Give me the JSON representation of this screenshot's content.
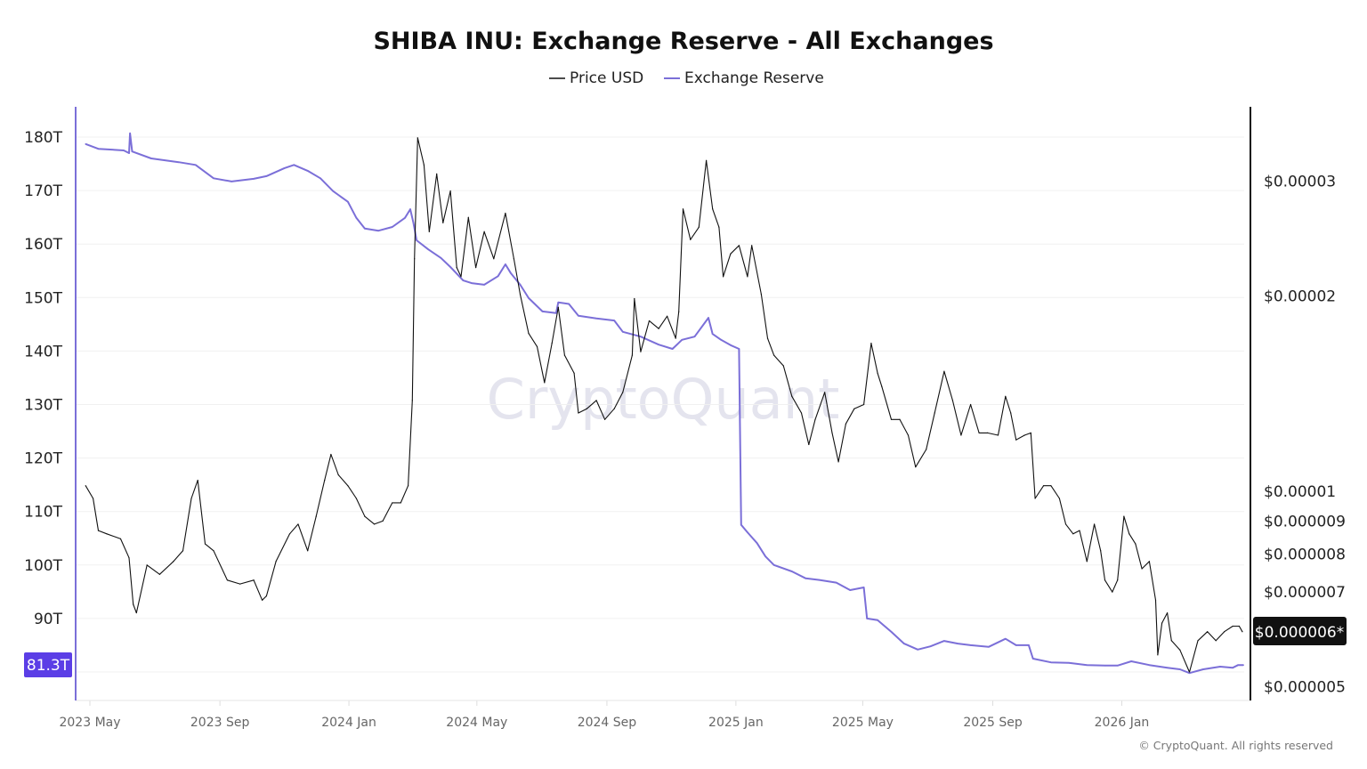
{
  "chart_data": {
    "type": "line",
    "title": "SHIBA INU: Exchange Reserve - All Exchanges",
    "watermark": "CryptoQuant",
    "footer": "© CryptoQuant. All rights reserved",
    "grid": true,
    "legend_position": "top-center",
    "legend": [
      "Price USD",
      "Exchange Reserve"
    ],
    "colors": {
      "price": "#111111",
      "reserve": "#7b6fd8",
      "reserve_label_bg": "#5b3ee6",
      "price_label_bg": "#111111"
    },
    "x_ticks": [
      "2023 May",
      "2023 Sep",
      "2024 Jan",
      "2024 May",
      "2024 Sep",
      "2025 Jan",
      "2025 May",
      "2025 Sep",
      "2026 Jan"
    ],
    "x_tick_dates": [
      "2023-05-01",
      "2023-09-01",
      "2024-01-01",
      "2024-05-01",
      "2024-09-01",
      "2025-01-01",
      "2025-05-01",
      "2025-09-01",
      "2026-01-01"
    ],
    "left_axis": {
      "ticks": [
        "180T",
        "170T",
        "160T",
        "150T",
        "140T",
        "130T",
        "120T",
        "110T",
        "100T",
        "90T"
      ],
      "tick_values": [
        180,
        170,
        160,
        150,
        140,
        130,
        120,
        110,
        100,
        90
      ],
      "unit": "T",
      "current_label": "81.3T"
    },
    "right_axis": {
      "scale": "log",
      "ticks": [
        "$0.00003",
        "$0.00002",
        "$0.00001",
        "$0.000009",
        "$0.000008",
        "$0.000007",
        "$0.000005"
      ],
      "tick_values": [
        3e-05,
        2e-05,
        1e-05,
        9e-06,
        8e-06,
        7e-06,
        5e-06
      ],
      "current_label": "$0.000006*"
    },
    "series": [
      {
        "name": "Price USD",
        "axis": "right",
        "points": [
          [
            "2023-04-27",
            1.02e-05
          ],
          [
            "2023-05-04",
            9.75e-06
          ],
          [
            "2023-05-09",
            8.7e-06
          ],
          [
            "2023-05-17",
            8.6e-06
          ],
          [
            "2023-05-30",
            8.45e-06
          ],
          [
            "2023-06-07",
            7.9e-06
          ],
          [
            "2023-06-11",
            6.7e-06
          ],
          [
            "2023-06-14",
            6.5e-06
          ],
          [
            "2023-06-24",
            7.7e-06
          ],
          [
            "2023-07-06",
            7.45e-06
          ],
          [
            "2023-07-19",
            7.8e-06
          ],
          [
            "2023-07-28",
            8.1e-06
          ],
          [
            "2023-08-05",
            9.75e-06
          ],
          [
            "2023-08-11",
            1.04e-05
          ],
          [
            "2023-08-18",
            8.3e-06
          ],
          [
            "2023-08-26",
            8.1e-06
          ],
          [
            "2023-09-08",
            7.3e-06
          ],
          [
            "2023-09-20",
            7.2e-06
          ],
          [
            "2023-10-03",
            7.3e-06
          ],
          [
            "2023-10-11",
            6.8e-06
          ],
          [
            "2023-10-15",
            6.9e-06
          ],
          [
            "2023-10-24",
            7.8e-06
          ],
          [
            "2023-11-06",
            8.6e-06
          ],
          [
            "2023-11-14",
            8.9e-06
          ],
          [
            "2023-11-23",
            8.1e-06
          ],
          [
            "2023-12-01",
            9.15e-06
          ],
          [
            "2023-12-09",
            1.04e-05
          ],
          [
            "2023-12-15",
            1.14e-05
          ],
          [
            "2023-12-22",
            1.06e-05
          ],
          [
            "2023-12-31",
            1.02e-05
          ],
          [
            "2024-01-08",
            9.75e-06
          ],
          [
            "2024-01-16",
            9.15e-06
          ],
          [
            "2024-01-25",
            8.9e-06
          ],
          [
            "2024-02-02",
            9e-06
          ],
          [
            "2024-02-11",
            9.6e-06
          ],
          [
            "2024-02-19",
            9.6e-06
          ],
          [
            "2024-02-26",
            1.02e-05
          ],
          [
            "2024-03-01",
            1.38e-05
          ],
          [
            "2024-03-03",
            2.28e-05
          ],
          [
            "2024-03-06",
            3.5e-05
          ],
          [
            "2024-03-12",
            3.18e-05
          ],
          [
            "2024-03-17",
            2.51e-05
          ],
          [
            "2024-03-24",
            3.08e-05
          ],
          [
            "2024-03-30",
            2.59e-05
          ],
          [
            "2024-04-06",
            2.9e-05
          ],
          [
            "2024-04-12",
            2.21e-05
          ],
          [
            "2024-04-16",
            2.14e-05
          ],
          [
            "2024-04-23",
            2.64e-05
          ],
          [
            "2024-04-30",
            2.21e-05
          ],
          [
            "2024-05-08",
            2.51e-05
          ],
          [
            "2024-05-17",
            2.28e-05
          ],
          [
            "2024-05-28",
            2.68e-05
          ],
          [
            "2024-06-05",
            2.28e-05
          ],
          [
            "2024-06-11",
            2.01e-05
          ],
          [
            "2024-06-19",
            1.75e-05
          ],
          [
            "2024-06-27",
            1.67e-05
          ],
          [
            "2024-07-04",
            1.47e-05
          ],
          [
            "2024-07-11",
            1.69e-05
          ],
          [
            "2024-07-17",
            1.92e-05
          ],
          [
            "2024-07-23",
            1.62e-05
          ],
          [
            "2024-08-01",
            1.52e-05
          ],
          [
            "2024-08-05",
            1.32e-05
          ],
          [
            "2024-08-13",
            1.34e-05
          ],
          [
            "2024-08-22",
            1.38e-05
          ],
          [
            "2024-08-30",
            1.29e-05
          ],
          [
            "2024-09-08",
            1.34e-05
          ],
          [
            "2024-09-16",
            1.42e-05
          ],
          [
            "2024-09-25",
            1.62e-05
          ],
          [
            "2024-09-27",
            1.98e-05
          ],
          [
            "2024-10-03",
            1.64e-05
          ],
          [
            "2024-10-11",
            1.83e-05
          ],
          [
            "2024-10-20",
            1.78e-05
          ],
          [
            "2024-10-28",
            1.86e-05
          ],
          [
            "2024-11-05",
            1.72e-05
          ],
          [
            "2024-11-08",
            1.89e-05
          ],
          [
            "2024-11-12",
            2.72e-05
          ],
          [
            "2024-11-19",
            2.44e-05
          ],
          [
            "2024-11-27",
            2.55e-05
          ],
          [
            "2024-12-04",
            3.23e-05
          ],
          [
            "2024-12-10",
            2.72e-05
          ],
          [
            "2024-12-16",
            2.55e-05
          ],
          [
            "2024-12-20",
            2.14e-05
          ],
          [
            "2024-12-27",
            2.32e-05
          ],
          [
            "2025-01-04",
            2.39e-05
          ],
          [
            "2025-01-12",
            2.14e-05
          ],
          [
            "2025-01-16",
            2.39e-05
          ],
          [
            "2025-01-25",
            2.01e-05
          ],
          [
            "2025-01-31",
            1.72e-05
          ],
          [
            "2025-02-06",
            1.62e-05
          ],
          [
            "2025-02-15",
            1.56e-05
          ],
          [
            "2025-02-23",
            1.4e-05
          ],
          [
            "2025-03-04",
            1.32e-05
          ],
          [
            "2025-03-11",
            1.18e-05
          ],
          [
            "2025-03-17",
            1.29e-05
          ],
          [
            "2025-03-26",
            1.42e-05
          ],
          [
            "2025-04-02",
            1.23e-05
          ],
          [
            "2025-04-08",
            1.11e-05
          ],
          [
            "2025-04-15",
            1.27e-05
          ],
          [
            "2025-04-23",
            1.34e-05
          ],
          [
            "2025-05-02",
            1.36e-05
          ],
          [
            "2025-05-09",
            1.69e-05
          ],
          [
            "2025-05-15",
            1.52e-05
          ],
          [
            "2025-05-19",
            1.45e-05
          ],
          [
            "2025-05-28",
            1.29e-05
          ],
          [
            "2025-06-05",
            1.29e-05
          ],
          [
            "2025-06-13",
            1.22e-05
          ],
          [
            "2025-06-20",
            1.09e-05
          ],
          [
            "2025-06-30",
            1.16e-05
          ],
          [
            "2025-07-08",
            1.32e-05
          ],
          [
            "2025-07-17",
            1.53e-05
          ],
          [
            "2025-07-25",
            1.38e-05
          ],
          [
            "2025-08-02",
            1.22e-05
          ],
          [
            "2025-08-11",
            1.36e-05
          ],
          [
            "2025-08-19",
            1.23e-05
          ],
          [
            "2025-08-27",
            1.23e-05
          ],
          [
            "2025-09-06",
            1.22e-05
          ],
          [
            "2025-09-13",
            1.4e-05
          ],
          [
            "2025-09-18",
            1.32e-05
          ],
          [
            "2025-09-23",
            1.2e-05
          ],
          [
            "2025-10-01",
            1.22e-05
          ],
          [
            "2025-10-07",
            1.23e-05
          ],
          [
            "2025-10-11",
            9.75e-06
          ],
          [
            "2025-10-19",
            1.02e-05
          ],
          [
            "2025-10-26",
            1.02e-05
          ],
          [
            "2025-11-03",
            9.75e-06
          ],
          [
            "2025-11-09",
            8.9e-06
          ],
          [
            "2025-11-16",
            8.6e-06
          ],
          [
            "2025-11-22",
            8.7e-06
          ],
          [
            "2025-11-29",
            7.8e-06
          ],
          [
            "2025-12-06",
            8.9e-06
          ],
          [
            "2025-12-12",
            8.1e-06
          ],
          [
            "2025-12-16",
            7.3e-06
          ],
          [
            "2025-12-23",
            7e-06
          ],
          [
            "2025-12-28",
            7.3e-06
          ],
          [
            "2026-01-03",
            9.15e-06
          ],
          [
            "2026-01-08",
            8.6e-06
          ],
          [
            "2026-01-14",
            8.3e-06
          ],
          [
            "2026-01-20",
            7.6e-06
          ],
          [
            "2026-01-27",
            7.8e-06
          ],
          [
            "2026-02-02",
            6.8e-06
          ],
          [
            "2026-02-04",
            5.6e-06
          ],
          [
            "2026-02-08",
            6.27e-06
          ],
          [
            "2026-02-13",
            6.5e-06
          ],
          [
            "2026-02-17",
            5.89e-06
          ],
          [
            "2026-02-25",
            5.7e-06
          ],
          [
            "2026-03-06",
            5.27e-06
          ],
          [
            "2026-03-14",
            5.89e-06
          ],
          [
            "2026-03-23",
            6.08e-06
          ],
          [
            "2026-03-31",
            5.89e-06
          ],
          [
            "2026-04-08",
            6.08e-06
          ],
          [
            "2026-04-16",
            6.2e-06
          ],
          [
            "2026-04-22",
            6.2e-06
          ],
          [
            "2026-04-25",
            6.08e-06
          ]
        ]
      },
      {
        "name": "Exchange Reserve",
        "axis": "left",
        "unit": "T",
        "points": [
          [
            "2023-04-27",
            178.7
          ],
          [
            "2023-05-09",
            177.8
          ],
          [
            "2023-06-02",
            177.5
          ],
          [
            "2023-06-07",
            177.0
          ],
          [
            "2023-06-08",
            180.7
          ],
          [
            "2023-06-10",
            177.3
          ],
          [
            "2023-06-28",
            176.0
          ],
          [
            "2023-07-24",
            175.3
          ],
          [
            "2023-08-09",
            174.8
          ],
          [
            "2023-08-26",
            172.3
          ],
          [
            "2023-09-12",
            171.7
          ],
          [
            "2023-10-03",
            172.2
          ],
          [
            "2023-10-15",
            172.7
          ],
          [
            "2023-11-01",
            174.2
          ],
          [
            "2023-11-10",
            174.8
          ],
          [
            "2023-11-23",
            173.7
          ],
          [
            "2023-12-05",
            172.3
          ],
          [
            "2023-12-17",
            169.9
          ],
          [
            "2023-12-31",
            167.9
          ],
          [
            "2024-01-08",
            164.9
          ],
          [
            "2024-01-16",
            162.9
          ],
          [
            "2024-01-29",
            162.5
          ],
          [
            "2024-02-11",
            163.2
          ],
          [
            "2024-02-23",
            164.9
          ],
          [
            "2024-02-28",
            166.5
          ],
          [
            "2024-03-02",
            164.0
          ],
          [
            "2024-03-05",
            160.7
          ],
          [
            "2024-03-16",
            159.0
          ],
          [
            "2024-03-28",
            157.4
          ],
          [
            "2024-04-06",
            155.7
          ],
          [
            "2024-04-18",
            153.2
          ],
          [
            "2024-04-26",
            152.7
          ],
          [
            "2024-05-08",
            152.4
          ],
          [
            "2024-05-21",
            154.0
          ],
          [
            "2024-05-28",
            156.2
          ],
          [
            "2024-06-02",
            154.6
          ],
          [
            "2024-06-11",
            152.4
          ],
          [
            "2024-06-19",
            149.9
          ],
          [
            "2024-07-02",
            147.4
          ],
          [
            "2024-07-15",
            147.1
          ],
          [
            "2024-07-17",
            149.1
          ],
          [
            "2024-07-27",
            148.8
          ],
          [
            "2024-08-05",
            146.6
          ],
          [
            "2024-08-22",
            146.1
          ],
          [
            "2024-09-08",
            145.7
          ],
          [
            "2024-09-16",
            143.6
          ],
          [
            "2024-10-03",
            142.7
          ],
          [
            "2024-10-20",
            141.2
          ],
          [
            "2024-11-02",
            140.4
          ],
          [
            "2024-11-11",
            142.1
          ],
          [
            "2024-11-23",
            142.7
          ],
          [
            "2024-12-06",
            146.2
          ],
          [
            "2024-12-10",
            143.2
          ],
          [
            "2024-12-18",
            142.1
          ],
          [
            "2024-12-27",
            141.1
          ],
          [
            "2025-01-04",
            140.4
          ],
          [
            "2025-01-06",
            107.5
          ],
          [
            "2025-01-12",
            106.1
          ],
          [
            "2025-01-21",
            104.1
          ],
          [
            "2025-01-29",
            101.6
          ],
          [
            "2025-02-06",
            100.0
          ],
          [
            "2025-02-23",
            98.8
          ],
          [
            "2025-03-08",
            97.5
          ],
          [
            "2025-03-21",
            97.2
          ],
          [
            "2025-04-06",
            96.7
          ],
          [
            "2025-04-19",
            95.3
          ],
          [
            "2025-05-02",
            95.8
          ],
          [
            "2025-05-05",
            90.0
          ],
          [
            "2025-05-15",
            89.7
          ],
          [
            "2025-05-28",
            87.5
          ],
          [
            "2025-06-09",
            85.3
          ],
          [
            "2025-06-22",
            84.2
          ],
          [
            "2025-07-04",
            84.8
          ],
          [
            "2025-07-17",
            85.8
          ],
          [
            "2025-07-30",
            85.3
          ],
          [
            "2025-08-11",
            85.0
          ],
          [
            "2025-08-28",
            84.7
          ],
          [
            "2025-09-13",
            86.2
          ],
          [
            "2025-09-23",
            85.0
          ],
          [
            "2025-10-05",
            85.0
          ],
          [
            "2025-10-09",
            82.5
          ],
          [
            "2025-10-26",
            81.8
          ],
          [
            "2025-11-12",
            81.7
          ],
          [
            "2025-11-29",
            81.3
          ],
          [
            "2025-12-16",
            81.2
          ],
          [
            "2025-12-28",
            81.2
          ],
          [
            "2026-01-10",
            82.0
          ],
          [
            "2026-01-27",
            81.3
          ],
          [
            "2026-02-13",
            80.8
          ],
          [
            "2026-02-25",
            80.5
          ],
          [
            "2026-03-06",
            79.8
          ],
          [
            "2026-03-19",
            80.5
          ],
          [
            "2026-04-04",
            81.0
          ],
          [
            "2026-04-16",
            80.8
          ],
          [
            "2026-04-21",
            81.3
          ],
          [
            "2026-04-26",
            81.3
          ]
        ]
      }
    ]
  }
}
